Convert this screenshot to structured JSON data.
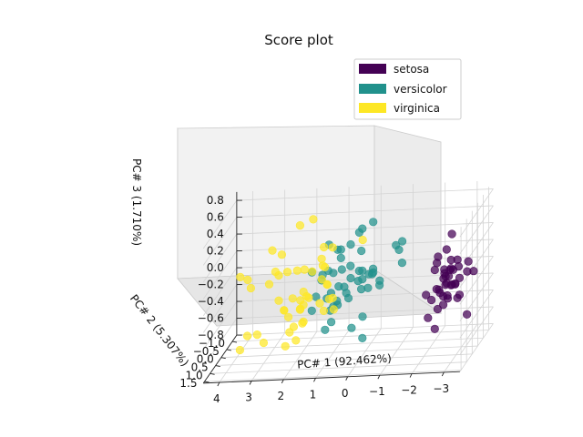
{
  "chart_data": {
    "type": "scatter",
    "projection": "3d",
    "title": "Score plot",
    "xlabel": "PC# 1 (92.462%)",
    "ylabel": "PC# 2 (5.307%)",
    "zlabel": "PC# 3 (1.710%)",
    "xlim": [
      -3.5,
      4.5
    ],
    "ylim": [
      -1.4,
      1.6
    ],
    "zlim": [
      -0.8,
      0.9
    ],
    "x_ticks": [
      "4",
      "3",
      "2",
      "1",
      "0",
      "−1",
      "−2",
      "−3"
    ],
    "y_ticks": [
      "−1.0",
      "−0.5",
      "0.0",
      "0.5",
      "1.0",
      "1.5"
    ],
    "z_ticks": [
      "0.8",
      "0.6",
      "0.4",
      "0.2",
      "0.0",
      "−0.2",
      "−0.4",
      "−0.6",
      "−0.8"
    ],
    "grid": true,
    "legend_position": "top-right",
    "series": [
      {
        "name": "setosa",
        "color": "#440154",
        "points": [
          [
            -2.7,
            0.3,
            0.1
          ],
          [
            -2.8,
            -0.2,
            0.2
          ],
          [
            -2.9,
            -0.1,
            0.0
          ],
          [
            -2.7,
            -0.3,
            -0.1
          ],
          [
            -2.8,
            0.3,
            0.0
          ],
          [
            -2.3,
            0.7,
            -0.1
          ],
          [
            -2.9,
            -0.1,
            -0.2
          ],
          [
            -2.6,
            0.2,
            0.0
          ],
          [
            -3.0,
            -0.6,
            0.1
          ],
          [
            -2.7,
            -0.1,
            0.1
          ],
          [
            -2.5,
            0.6,
            0.0
          ],
          [
            -2.6,
            0.1,
            -0.2
          ],
          [
            -2.8,
            -0.3,
            0.1
          ],
          [
            -3.2,
            -0.5,
            0.0
          ],
          [
            -2.6,
            1.1,
            0.1
          ],
          [
            -2.4,
            1.3,
            -0.2
          ],
          [
            -2.6,
            0.8,
            0.0
          ],
          [
            -2.6,
            0.3,
            0.1
          ],
          [
            -2.2,
            0.9,
            0.0
          ],
          [
            -2.6,
            0.5,
            -0.1
          ],
          [
            -2.3,
            0.4,
            0.2
          ],
          [
            -2.6,
            0.5,
            -0.2
          ],
          [
            -3.2,
            0.1,
            -0.4
          ],
          [
            -2.3,
            0.1,
            0.3
          ],
          [
            -2.4,
            -0.1,
            0.0
          ],
          [
            -2.6,
            -0.2,
            0.2
          ],
          [
            -2.5,
            0.1,
            0.1
          ],
          [
            -2.6,
            0.4,
            0.2
          ],
          [
            -2.6,
            0.3,
            0.0
          ],
          [
            -2.6,
            -0.2,
            -0.1
          ],
          [
            -2.6,
            -0.2,
            0.1
          ],
          [
            -2.3,
            0.4,
            -0.5
          ],
          [
            -2.9,
            1.0,
            0.0
          ],
          [
            -2.7,
            1.3,
            -0.1
          ],
          [
            -2.6,
            -0.1,
            0.1
          ],
          [
            -2.9,
            0.1,
            -0.2
          ],
          [
            -2.4,
            0.5,
            0.3
          ],
          [
            -2.9,
            0.3,
            0.0
          ],
          [
            -3.0,
            -0.5,
            0.0
          ],
          [
            -2.6,
            0.2,
            0.4
          ],
          [
            -2.8,
            0.3,
            0.6
          ]
        ]
      },
      {
        "name": "versicolor",
        "color": "#21918c",
        "points": [
          [
            1.3,
            0.7,
            0.0
          ],
          [
            0.9,
            0.3,
            0.2
          ],
          [
            1.5,
            0.5,
            -0.2
          ],
          [
            0.2,
            -0.8,
            -0.2
          ],
          [
            1.1,
            0.1,
            0.5
          ],
          [
            0.6,
            -0.4,
            0.0
          ],
          [
            1.1,
            0.3,
            -0.1
          ],
          [
            -0.8,
            -1.0,
            0.3
          ],
          [
            1.0,
            0.2,
            -0.4
          ],
          [
            0.0,
            -0.7,
            0.6
          ],
          [
            -0.5,
            -1.3,
            0.2
          ],
          [
            0.5,
            -0.1,
            0.2
          ],
          [
            0.3,
            -0.6,
            -0.5
          ],
          [
            0.9,
            -0.1,
            0.4
          ],
          [
            -0.1,
            -0.4,
            0.1
          ],
          [
            0.9,
            0.5,
            0.0
          ],
          [
            0.6,
            -0.2,
            -0.2
          ],
          [
            0.2,
            -0.3,
            0.1
          ],
          [
            1.1,
            -0.6,
            -0.3
          ],
          [
            0.0,
            -0.6,
            0.0
          ],
          [
            1.1,
            0.0,
            -0.3
          ],
          [
            0.4,
            0.1,
            -0.5
          ],
          [
            1.3,
            -0.4,
            0.1
          ],
          [
            0.8,
            -0.1,
            0.3
          ],
          [
            0.7,
            0.1,
            0.2
          ],
          [
            0.9,
            0.3,
            -0.2
          ],
          [
            1.3,
            0.2,
            0.1
          ],
          [
            1.6,
            0.2,
            0.2
          ],
          [
            0.8,
            -0.1,
            0.4
          ],
          [
            -0.3,
            -0.4,
            -0.1
          ],
          [
            0.0,
            -0.7,
            0.0
          ],
          [
            -0.2,
            -0.7,
            -0.1
          ],
          [
            0.2,
            -0.3,
            -0.7
          ],
          [
            1.4,
            -0.4,
            -0.6
          ],
          [
            0.6,
            -0.4,
            0.4
          ],
          [
            0.8,
            0.2,
            -0.2
          ],
          [
            1.2,
            0.4,
            0.2
          ],
          [
            0.8,
            -0.4,
            -0.1
          ],
          [
            0.2,
            -0.2,
            -0.1
          ],
          [
            0.1,
            -0.6,
            0.0
          ],
          [
            0.4,
            -0.6,
            0.5
          ],
          [
            0.8,
            0.1,
            0.0
          ],
          [
            0.2,
            -0.3,
            0.0
          ],
          [
            -0.7,
            -1.0,
            0.2
          ],
          [
            0.3,
            -0.5,
            0.3
          ],
          [
            0.3,
            -0.2,
            0.0
          ],
          [
            0.3,
            -0.3,
            0.1
          ],
          [
            0.6,
            0.0,
            -0.1
          ],
          [
            -0.9,
            -0.7,
            0.1
          ],
          [
            0.2,
            -0.3,
            0.6
          ]
        ]
      },
      {
        "name": "virginica",
        "color": "#fde725",
        "points": [
          [
            2.5,
            0.0,
            -0.7
          ],
          [
            1.4,
            -0.6,
            -0.1
          ],
          [
            2.6,
            0.3,
            0.2
          ],
          [
            2.0,
            -0.2,
            -0.1
          ],
          [
            2.4,
            0.1,
            0.2
          ],
          [
            3.4,
            0.5,
            0.1
          ],
          [
            0.5,
            -1.2,
            0.3
          ],
          [
            2.9,
            0.3,
            0.1
          ],
          [
            2.3,
            -0.5,
            0.1
          ],
          [
            2.9,
            0.8,
            -0.5
          ],
          [
            1.7,
            0.2,
            -0.1
          ],
          [
            1.8,
            -0.4,
            0.1
          ],
          [
            2.2,
            0.2,
            -0.1
          ],
          [
            1.3,
            -0.8,
            -0.3
          ],
          [
            1.6,
            -0.5,
            -0.3
          ],
          [
            1.9,
            0.1,
            -0.4
          ],
          [
            1.9,
            0.0,
            0.2
          ],
          [
            3.5,
            1.2,
            -0.5
          ],
          [
            3.8,
            0.3,
            0.2
          ],
          [
            1.3,
            -0.8,
            0.3
          ],
          [
            2.4,
            0.4,
            -0.2
          ],
          [
            1.2,
            -0.6,
            -0.4
          ],
          [
            3.5,
            0.5,
            0.2
          ],
          [
            1.4,
            -0.1,
            0.3
          ],
          [
            2.3,
            0.3,
            -0.3
          ],
          [
            2.6,
            0.6,
            0.3
          ],
          [
            1.3,
            -0.1,
            0.2
          ],
          [
            1.3,
            0.0,
            -0.3
          ],
          [
            2.1,
            -0.2,
            -0.2
          ],
          [
            2.4,
            0.6,
            0.5
          ],
          [
            2.8,
            0.3,
            0.5
          ],
          [
            3.2,
            1.4,
            -0.3
          ],
          [
            2.1,
            -0.2,
            -0.3
          ],
          [
            1.4,
            -0.2,
            0.2
          ],
          [
            1.8,
            -0.5,
            0.7
          ],
          [
            3.1,
            0.8,
            -0.4
          ],
          [
            2.1,
            0.2,
            -0.6
          ],
          [
            1.9,
            0.1,
            -0.2
          ],
          [
            1.2,
            -0.2,
            -0.2
          ],
          [
            2.1,
            0.4,
            -0.4
          ],
          [
            2.3,
            0.2,
            -0.5
          ],
          [
            1.9,
            0.4,
            -0.2
          ],
          [
            1.4,
            -0.6,
            -0.1
          ],
          [
            2.6,
            0.3,
            -0.1
          ],
          [
            2.4,
            0.4,
            -0.2
          ],
          [
            1.9,
            0.2,
            -0.4
          ],
          [
            1.5,
            -0.4,
            0.0
          ],
          [
            1.8,
            0.1,
            -0.1
          ],
          [
            1.9,
            0.4,
            0.8
          ],
          [
            1.4,
            -0.3,
            0.4
          ]
        ]
      }
    ]
  }
}
